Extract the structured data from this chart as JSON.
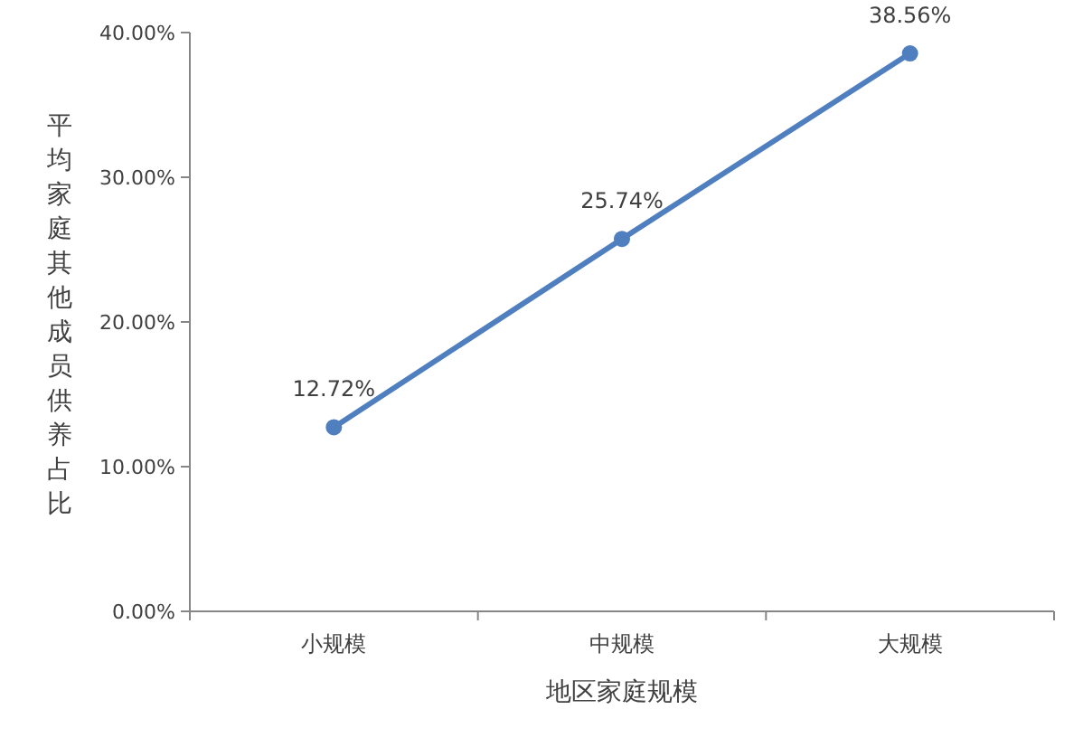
{
  "chart_data": {
    "type": "line",
    "xlabel": "地区家庭规模",
    "ylabel": "平均家庭其他成员供养占比",
    "categories": [
      "小规模",
      "中规模",
      "大规模"
    ],
    "series": [
      {
        "color": "#4f7fbf",
        "values": [
          12.72,
          25.74,
          38.56
        ],
        "value_labels": [
          "12.72%",
          "25.74%",
          "38.56%"
        ]
      }
    ],
    "ylim": [
      0,
      40
    ],
    "yticks": [
      {
        "value": 0,
        "label": "0.00%"
      },
      {
        "value": 10,
        "label": "10.00%"
      },
      {
        "value": 20,
        "label": "20.00%"
      },
      {
        "value": 30,
        "label": "30.00%"
      },
      {
        "value": 40,
        "label": "40.00%"
      }
    ],
    "grid": false,
    "marker": "circle",
    "line_style": "solid"
  }
}
